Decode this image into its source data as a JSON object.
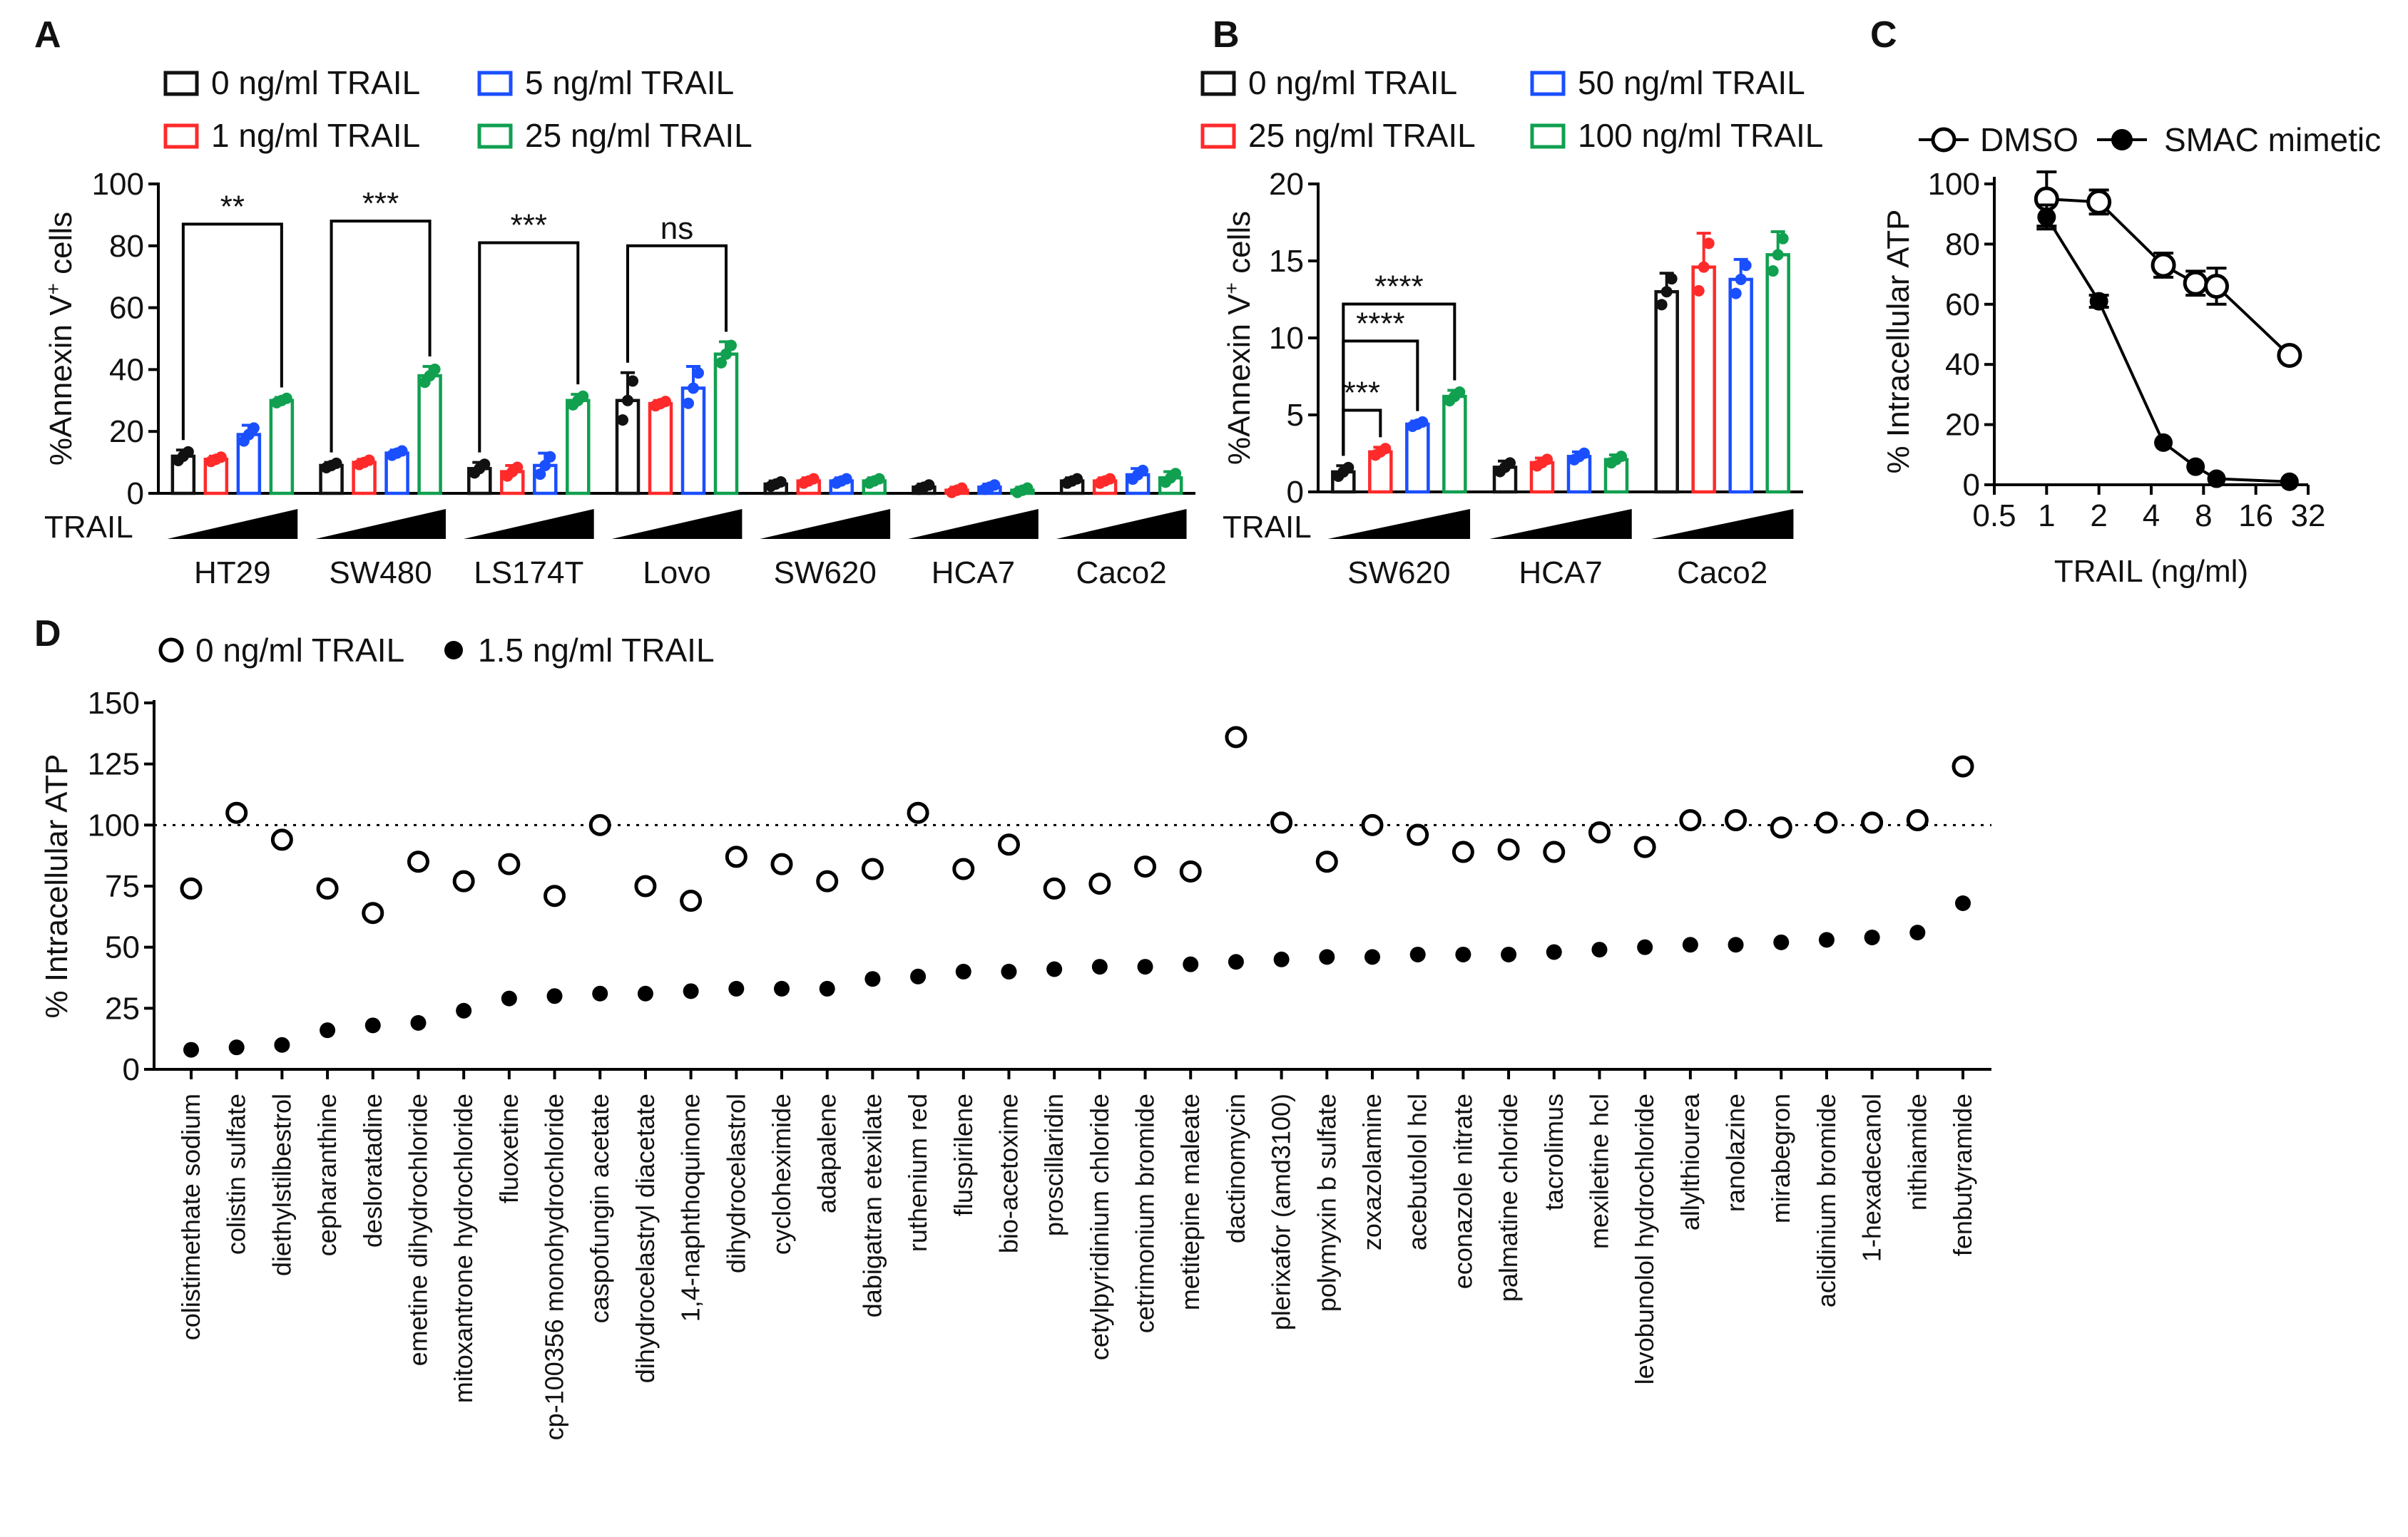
{
  "chart_data": [
    {
      "panel": "A",
      "type": "bar",
      "ylabel": "%Annexin V",
      "ylabel_sup": "+",
      "ylabel_tail": " cells",
      "ylim": [
        0,
        100
      ],
      "yticks": [
        0,
        20,
        40,
        60,
        80,
        100
      ],
      "trail_label": "TRAIL",
      "legend": [
        "0 ng/ml TRAIL",
        "1 ng/ml TRAIL",
        "5 ng/ml TRAIL",
        "25 ng/ml TRAIL"
      ],
      "series_colors": [
        "#111111",
        "#ff2a2a",
        "#1a4fff",
        "#10a050"
      ],
      "categories": [
        "HT29",
        "SW480",
        "LS174T",
        "Lovo",
        "SW620",
        "HCA7",
        "Caco2"
      ],
      "values": [
        [
          12,
          11,
          19,
          30
        ],
        [
          9,
          10,
          13,
          38
        ],
        [
          8,
          7,
          9,
          30
        ],
        [
          30,
          29,
          34,
          45
        ],
        [
          3,
          4,
          4,
          4
        ],
        [
          2,
          1,
          2,
          1
        ],
        [
          4,
          4,
          6,
          5
        ]
      ],
      "errors": [
        [
          2,
          1,
          3,
          1
        ],
        [
          1,
          1,
          1,
          3
        ],
        [
          2,
          2,
          4,
          2
        ],
        [
          9,
          1,
          7,
          4
        ],
        [
          1,
          1,
          1,
          1
        ],
        [
          1,
          1,
          1,
          1
        ],
        [
          1,
          1,
          2,
          2
        ]
      ],
      "significance": [
        {
          "group": 0,
          "label": "**"
        },
        {
          "group": 1,
          "label": "***"
        },
        {
          "group": 2,
          "label": "***"
        },
        {
          "group": 3,
          "label": "ns"
        }
      ]
    },
    {
      "panel": "B",
      "type": "bar",
      "ylabel": "%Annexin V",
      "ylabel_sup": "+",
      "ylabel_tail": " cells",
      "ylim": [
        0,
        20
      ],
      "yticks": [
        0,
        5,
        10,
        15,
        20
      ],
      "trail_label": "TRAIL",
      "legend": [
        "0 ng/ml TRAIL",
        "25 ng/ml TRAIL",
        "50 ng/ml TRAIL",
        "100 ng/ml TRAIL"
      ],
      "series_colors": [
        "#111111",
        "#ff2a2a",
        "#1a4fff",
        "#10a050"
      ],
      "categories": [
        "SW620",
        "HCA7",
        "Caco2"
      ],
      "values": [
        [
          1.3,
          2.6,
          4.4,
          6.2
        ],
        [
          1.6,
          1.9,
          2.3,
          2.1
        ],
        [
          13.0,
          14.6,
          13.8,
          15.4
        ]
      ],
      "errors": [
        [
          0.4,
          0.3,
          0.2,
          0.4
        ],
        [
          0.4,
          0.3,
          0.3,
          0.3
        ],
        [
          1.2,
          2.2,
          1.3,
          1.5
        ]
      ],
      "significance": [
        {
          "group": 0,
          "from": 0,
          "to": 1,
          "label": "***"
        },
        {
          "group": 0,
          "from": 0,
          "to": 2,
          "label": "****"
        },
        {
          "group": 0,
          "from": 0,
          "to": 3,
          "label": "****"
        }
      ]
    },
    {
      "panel": "C",
      "type": "line",
      "xlabel": "TRAIL (ng/ml)",
      "ylabel": "% Intracellular ATP",
      "xscale": "log2",
      "xlim": [
        0.5,
        32
      ],
      "xticks": [
        "0.5",
        "1",
        "2",
        "4",
        "8",
        "16",
        "32"
      ],
      "ylim": [
        0,
        100
      ],
      "yticks": [
        0,
        20,
        40,
        60,
        80,
        100
      ],
      "series": [
        {
          "name": "DMSO",
          "marker": "open",
          "x": [
            1,
            2,
            4.7,
            7.2,
            9.5,
            25
          ],
          "y": [
            95,
            94,
            73,
            67,
            66,
            43
          ],
          "err": [
            9,
            4,
            4,
            4,
            6,
            2
          ]
        },
        {
          "name": "SMAC mimetic",
          "marker": "filled",
          "x": [
            1,
            2,
            4.7,
            7.2,
            9.5,
            25
          ],
          "y": [
            89,
            61,
            14,
            6,
            2,
            1
          ],
          "err": [
            4,
            2,
            1,
            1,
            1,
            1
          ]
        }
      ]
    },
    {
      "panel": "D",
      "type": "scatter",
      "ylabel": "% Intracellular ATP",
      "ylim": [
        0,
        150
      ],
      "yticks": [
        0,
        25,
        50,
        75,
        100,
        125,
        150
      ],
      "reference_line": 100,
      "legend": [
        "0 ng/ml TRAIL",
        "1.5 ng/ml TRAIL"
      ],
      "categories": [
        "colistimethate sodium",
        "colistin sulfate",
        "diethylstilbestrol",
        "cepharanthine",
        "desloratadine",
        "emetine dihydrochloride",
        "mitoxantrone hydrochloride",
        "fluoxetine",
        "cp-100356 monohydrochloride",
        "caspofungin acetate",
        "dihydrocelastryl diacetate",
        "1,4-naphthoquinone",
        "dihydrocelastrol",
        "cycloheximide",
        "adapalene",
        "dabigatran etexilate",
        "ruthenium red",
        "fluspirilene",
        "bio-acetoxime",
        "proscillaridin",
        "cetylpyridinium chloride",
        "cetrimonium bromide",
        "metitepine maleate",
        "dactinomycin",
        "plerixafor (amd3100)",
        "polymyxin b sulfate",
        "zoxazolamine",
        "acebutolol hcl",
        "econazole nitrate",
        "palmatine chloride",
        "tacrolimus",
        "mexiletine hcl",
        "levobunolol hydrochloride",
        "allylthiourea",
        "ranolazine",
        "mirabegron",
        "aclidinium bromide",
        "1-hexadecanol",
        "nithiamide",
        "fenbutyramide"
      ],
      "series": [
        {
          "name": "0 ng/ml TRAIL",
          "marker": "open",
          "values": [
            74,
            105,
            94,
            74,
            64,
            85,
            77,
            84,
            71,
            100,
            75,
            69,
            87,
            84,
            77,
            82,
            105,
            82,
            92,
            74,
            76,
            83,
            81,
            136,
            101,
            85,
            100,
            96,
            89,
            90,
            89,
            97,
            91,
            102,
            102,
            99,
            101,
            101,
            102,
            124
          ]
        },
        {
          "name": "1.5 ng/ml TRAIL",
          "marker": "filled",
          "values": [
            8,
            9,
            10,
            16,
            18,
            19,
            24,
            29,
            30,
            31,
            31,
            32,
            33,
            33,
            33,
            37,
            38,
            40,
            40,
            41,
            42,
            42,
            43,
            44,
            45,
            46,
            46,
            47,
            47,
            47,
            48,
            49,
            50,
            51,
            51,
            52,
            53,
            54,
            56,
            68
          ]
        }
      ]
    }
  ]
}
